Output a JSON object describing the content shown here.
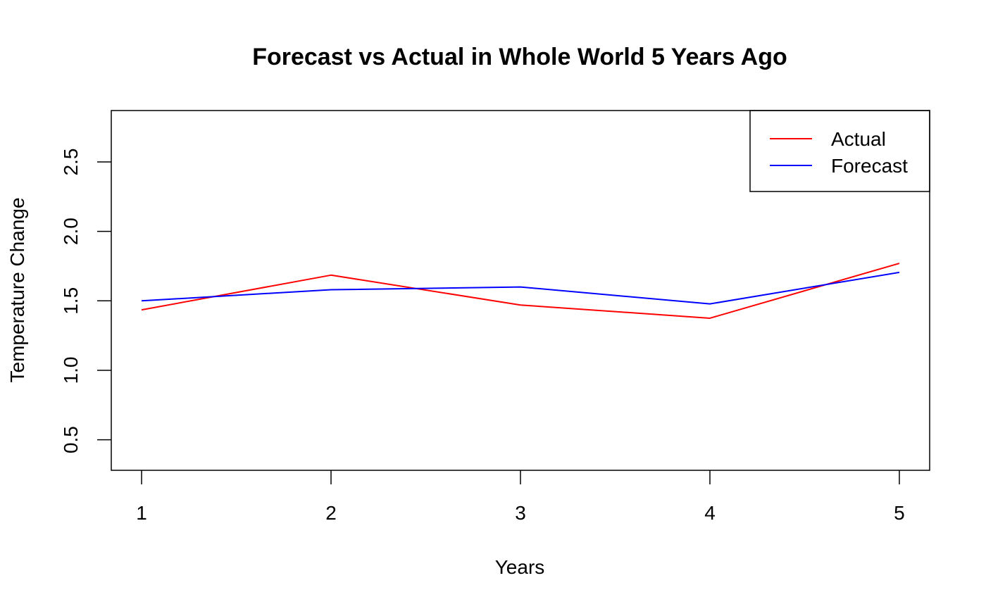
{
  "chart_data": {
    "type": "line",
    "title": "Forecast vs Actual in Whole World 5 Years Ago",
    "xlabel": "Years",
    "ylabel": "Temperature Change",
    "x": [
      1,
      2,
      3,
      4,
      5
    ],
    "x_ticks": [
      "1",
      "2",
      "3",
      "4",
      "5"
    ],
    "y_ticks": [
      "0.5",
      "1.0",
      "1.5",
      "2.0",
      "2.5"
    ],
    "xlim": [
      0.84,
      5.16
    ],
    "ylim": [
      0.28,
      2.87
    ],
    "grid": false,
    "legend_position": "top-right",
    "series": [
      {
        "name": "Actual",
        "color": "#ff0000",
        "values": [
          1.435,
          1.685,
          1.47,
          1.375,
          1.77
        ]
      },
      {
        "name": "Forecast",
        "color": "#0000ff",
        "values": [
          1.5,
          1.58,
          1.6,
          1.478,
          1.705
        ]
      }
    ]
  }
}
